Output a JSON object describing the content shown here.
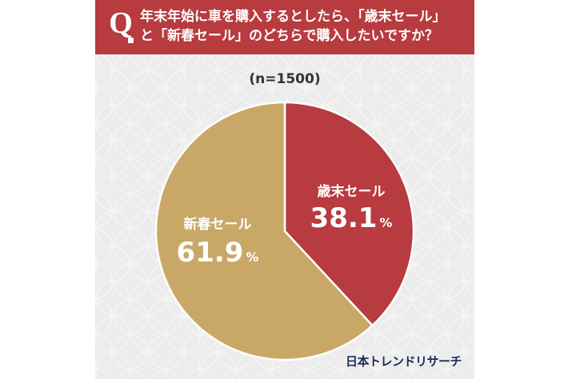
{
  "question": {
    "badge": "Q",
    "line1": "年末年始に車を購入するとしたら、「歳末セール」",
    "line2": "と「新春セール」のどちらで購入したいですか？"
  },
  "sample_size": "(n=1500)",
  "brand": "日本トレンドリサーチ",
  "colors": {
    "banner": "#b73b3f",
    "sale_year_end": "#b73b3f",
    "sale_new_year": "#c9a867",
    "background": "#ececec"
  },
  "chart_data": {
    "type": "pie",
    "title": "",
    "slices": [
      {
        "label": "歳末セール",
        "value": 38.1,
        "display": "38.1",
        "unit": "%",
        "color": "#b73b3f"
      },
      {
        "label": "新春セール",
        "value": 61.9,
        "display": "61.9",
        "unit": "%",
        "color": "#c9a867"
      }
    ],
    "start_angle": "12 o'clock",
    "direction": "clockwise"
  }
}
